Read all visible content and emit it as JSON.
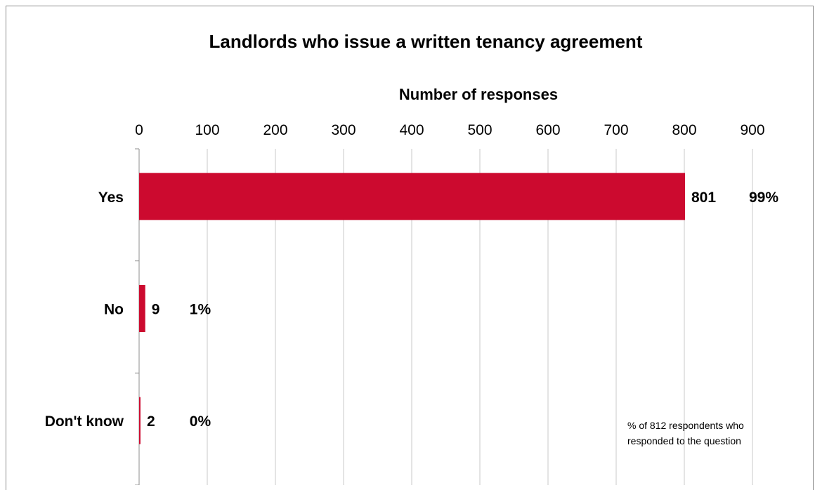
{
  "chart_data": {
    "type": "bar",
    "orientation": "horizontal",
    "title": "Landlords who issue a written tenancy agreement",
    "xlabel": "Number of responses",
    "ylabel": "",
    "xlim": [
      0,
      900
    ],
    "x_ticks": [
      "0",
      "100",
      "200",
      "300",
      "400",
      "500",
      "600",
      "700",
      "800",
      "900"
    ],
    "categories": [
      "Yes",
      "No",
      "Don't know"
    ],
    "values": [
      801,
      9,
      2
    ],
    "value_labels": [
      "801",
      "9",
      "2"
    ],
    "percent_labels": [
      "99%",
      "1%",
      "0%"
    ],
    "grid": true,
    "bar_color": "#cc0a2f",
    "annotation": [
      "% of 812 respondents who",
      "responded to the question"
    ]
  }
}
